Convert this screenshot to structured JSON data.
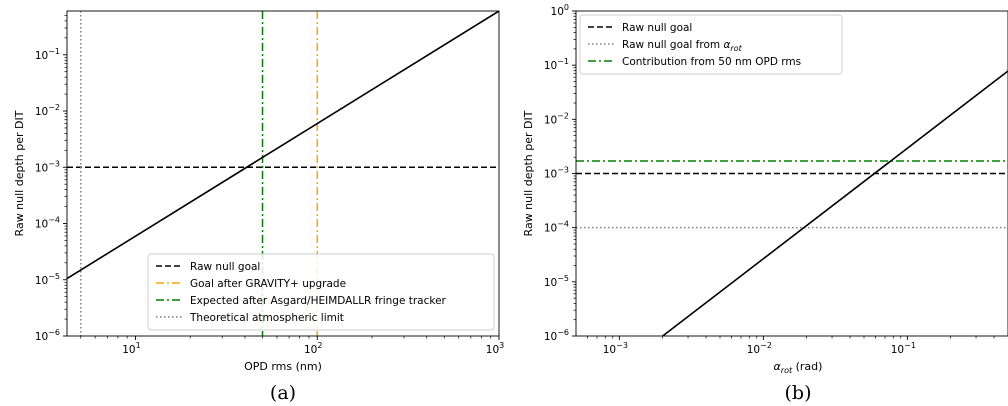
{
  "chart_data": [
    {
      "type": "line",
      "panel_label": "(a)",
      "xlabel": "OPD rms (nm)",
      "ylabel": "Raw null depth per DIT",
      "xscale": "log",
      "yscale": "log",
      "xlim": [
        4.2,
        1000
      ],
      "ylim": [
        1e-06,
        0.6
      ],
      "x_ticks": [
        {
          "value": 10,
          "base": "10",
          "exp": "1"
        },
        {
          "value": 100,
          "base": "10",
          "exp": "2"
        },
        {
          "value": 1000,
          "base": "10",
          "exp": "3"
        }
      ],
      "y_ticks": [
        {
          "value": 1e-06,
          "base": "10",
          "exp": "−6"
        },
        {
          "value": 1e-05,
          "base": "10",
          "exp": "−5"
        },
        {
          "value": 0.0001,
          "base": "10",
          "exp": "−4"
        },
        {
          "value": 0.001,
          "base": "10",
          "exp": "−3"
        },
        {
          "value": 0.01,
          "base": "10",
          "exp": "−2"
        },
        {
          "value": 0.1,
          "base": "10",
          "exp": "−1"
        }
      ],
      "curve": {
        "color": "#000000",
        "points": [
          [
            4.2,
            1.05e-05
          ],
          [
            1000,
            0.6
          ]
        ]
      },
      "hlines": [
        {
          "y": 0.001,
          "color": "#000000",
          "style": "dashed"
        }
      ],
      "vlines": [
        {
          "x": 100,
          "color": "#FFA500",
          "style": "dashdot"
        },
        {
          "x": 50,
          "color": "#008000",
          "style": "dashdot"
        },
        {
          "x": 5,
          "color": "#808080",
          "style": "dotted"
        }
      ],
      "legend": {
        "placement": "lower-right",
        "entries": [
          {
            "label": "Raw null goal",
            "color": "#000000",
            "style": "dashed"
          },
          {
            "label": "Goal after GRAVITY+ upgrade",
            "color": "#FFA500",
            "style": "dashdot"
          },
          {
            "label": "Expected after Asgard/HEIMDALLR fringe tracker",
            "color": "#008000",
            "style": "dashdot"
          },
          {
            "label": "Theoretical atmospheric limit",
            "color": "#808080",
            "style": "dotted"
          }
        ]
      }
    },
    {
      "type": "line",
      "panel_label": "(b)",
      "xlabel_main": "α",
      "xlabel_sub": "rot",
      "xlabel_unit": " (rad)",
      "ylabel": "Raw null depth per DIT",
      "xscale": "log",
      "yscale": "log",
      "xlim": [
        0.0005,
        0.5
      ],
      "ylim": [
        1e-06,
        1
      ],
      "x_ticks": [
        {
          "value": 0.001,
          "base": "10",
          "exp": "−3"
        },
        {
          "value": 0.01,
          "base": "10",
          "exp": "−2"
        },
        {
          "value": 0.1,
          "base": "10",
          "exp": "−1"
        }
      ],
      "y_ticks": [
        {
          "value": 1e-06,
          "base": "10",
          "exp": "−6"
        },
        {
          "value": 1e-05,
          "base": "10",
          "exp": "−5"
        },
        {
          "value": 0.0001,
          "base": "10",
          "exp": "−4"
        },
        {
          "value": 0.001,
          "base": "10",
          "exp": "−3"
        },
        {
          "value": 0.01,
          "base": "10",
          "exp": "−2"
        },
        {
          "value": 0.1,
          "base": "10",
          "exp": "−1"
        },
        {
          "value": 1,
          "base": "10",
          "exp": "0"
        }
      ],
      "curve": {
        "color": "#000000",
        "points": [
          [
            0.002,
            1e-06
          ],
          [
            0.5,
            0.078
          ]
        ]
      },
      "hlines": [
        {
          "y": 0.001,
          "color": "#000000",
          "style": "dashed"
        },
        {
          "y": 0.0001,
          "color": "#808080",
          "style": "dotted"
        },
        {
          "y": 0.0017,
          "color": "#008000",
          "style": "dashdot"
        }
      ],
      "vlines": [],
      "legend": {
        "placement": "upper-left",
        "entries": [
          {
            "label": "Raw null goal",
            "color": "#000000",
            "style": "dashed"
          },
          {
            "label": "Raw null goal from ",
            "label_math": "α",
            "label_sub": "rot",
            "color": "#808080",
            "style": "dotted"
          },
          {
            "label": "Contribution from 50 nm OPD rms",
            "color": "#008000",
            "style": "dashdot"
          }
        ]
      }
    }
  ]
}
